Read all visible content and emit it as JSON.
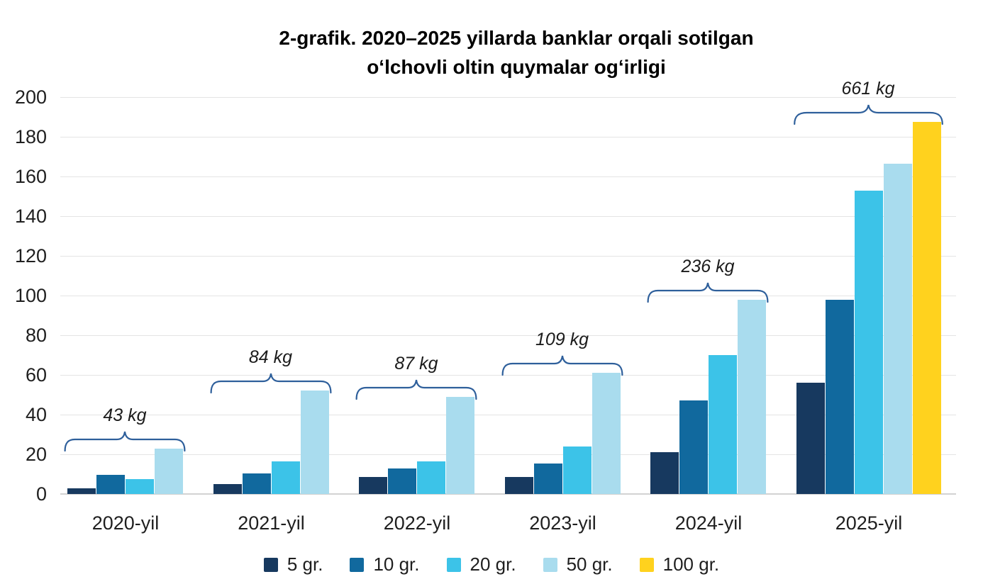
{
  "title": {
    "line1": "2-grafik. 2020–2025 yillarda banklar orqali sotilgan",
    "line2": "oʻlchovli oltin quymalar ogʻirligi"
  },
  "colors": {
    "brace": "#2e5f9b",
    "grid": "#e4e4e4",
    "zero_line": "#d2d2d2",
    "text": "#1a1a1a"
  },
  "chart_data": {
    "type": "bar",
    "title": "2-grafik. 2020–2025 yillarda banklar orqali sotilgan oʻlchovli oltin quymalar ogʻirligi",
    "categories": [
      "2020-yil",
      "2021-yil",
      "2022-yil",
      "2023-yil",
      "2024-yil",
      "2025-yil"
    ],
    "series": [
      {
        "name": "5 gr.",
        "color": "#17395f",
        "values": [
          3,
          5,
          8.5,
          8.5,
          21,
          56
        ]
      },
      {
        "name": "10 gr.",
        "color": "#11699e",
        "values": [
          9.5,
          10.5,
          13,
          15.5,
          47,
          98
        ]
      },
      {
        "name": "20 gr.",
        "color": "#3cc3e8",
        "values": [
          7.5,
          16.5,
          16.5,
          24,
          70,
          153
        ]
      },
      {
        "name": "50 gr.",
        "color": "#a9dcee",
        "values": [
          23,
          52,
          49,
          61,
          98,
          166.5
        ]
      },
      {
        "name": "100 gr.",
        "color": "#ffd21e",
        "values": [
          null,
          null,
          null,
          null,
          null,
          187.5
        ]
      }
    ],
    "annotations": [
      {
        "category": "2020-yil",
        "text": "43 kg"
      },
      {
        "category": "2021-yil",
        "text": "84 kg"
      },
      {
        "category": "2022-yil",
        "text": "87 kg"
      },
      {
        "category": "2023-yil",
        "text": "109 kg"
      },
      {
        "category": "2024-yil",
        "text": "236 kg"
      },
      {
        "category": "2025-yil",
        "text": "661 kg"
      }
    ],
    "xlabel": "",
    "ylabel": "",
    "ylim": [
      0,
      200
    ],
    "y_ticks": [
      0,
      20,
      40,
      60,
      80,
      100,
      120,
      140,
      160,
      180,
      200
    ],
    "grid": true,
    "legend_position": "bottom",
    "unit": "kg"
  }
}
